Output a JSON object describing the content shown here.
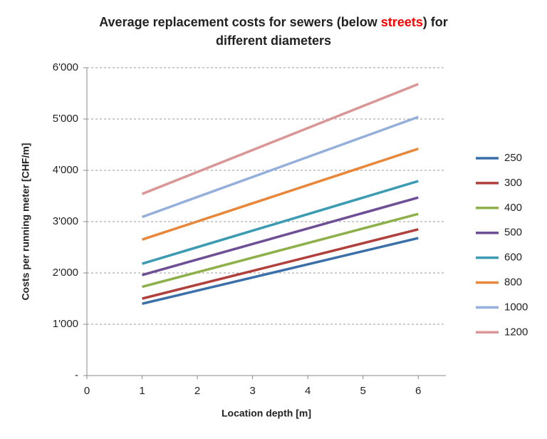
{
  "chart_data": {
    "type": "line",
    "title": [
      "Average replacement costs for sewers  (below ",
      "streets",
      ") for",
      "different diameters"
    ],
    "title_highlight_color": "#ff0000",
    "x_label": "Location depth [m]",
    "y_label": "Costs per running meter [CHF/m]",
    "x": [
      1,
      6
    ],
    "xlim": [
      0,
      6.5
    ],
    "xticks": [
      0,
      1,
      2,
      3,
      4,
      5,
      6
    ],
    "ylim": [
      0,
      6000
    ],
    "yticks": [
      {
        "value": 0,
        "label": "-"
      },
      {
        "value": 1000,
        "label": "1'000"
      },
      {
        "value": 2000,
        "label": "2'000"
      },
      {
        "value": 3000,
        "label": "3'000"
      },
      {
        "value": 4000,
        "label": "4'000"
      },
      {
        "value": 5000,
        "label": "5'000"
      },
      {
        "value": 6000,
        "label": "6'000"
      }
    ],
    "grid": true,
    "legend": "right",
    "series": [
      {
        "name": "250",
        "color": "#3b6fa9",
        "values": [
          1400,
          2680
        ]
      },
      {
        "name": "300",
        "color": "#b1403d",
        "values": [
          1500,
          2850
        ]
      },
      {
        "name": "400",
        "color": "#8db04b",
        "values": [
          1730,
          3150
        ]
      },
      {
        "name": "500",
        "color": "#6e4f96",
        "values": [
          1960,
          3470
        ]
      },
      {
        "name": "600",
        "color": "#3b9bb3",
        "values": [
          2180,
          3790
        ]
      },
      {
        "name": "800",
        "color": "#e8873a",
        "values": [
          2650,
          4420
        ]
      },
      {
        "name": "1000",
        "color": "#94afdc",
        "values": [
          3090,
          5040
        ]
      },
      {
        "name": "1200",
        "color": "#d99694",
        "values": [
          3540,
          5680
        ]
      }
    ]
  }
}
